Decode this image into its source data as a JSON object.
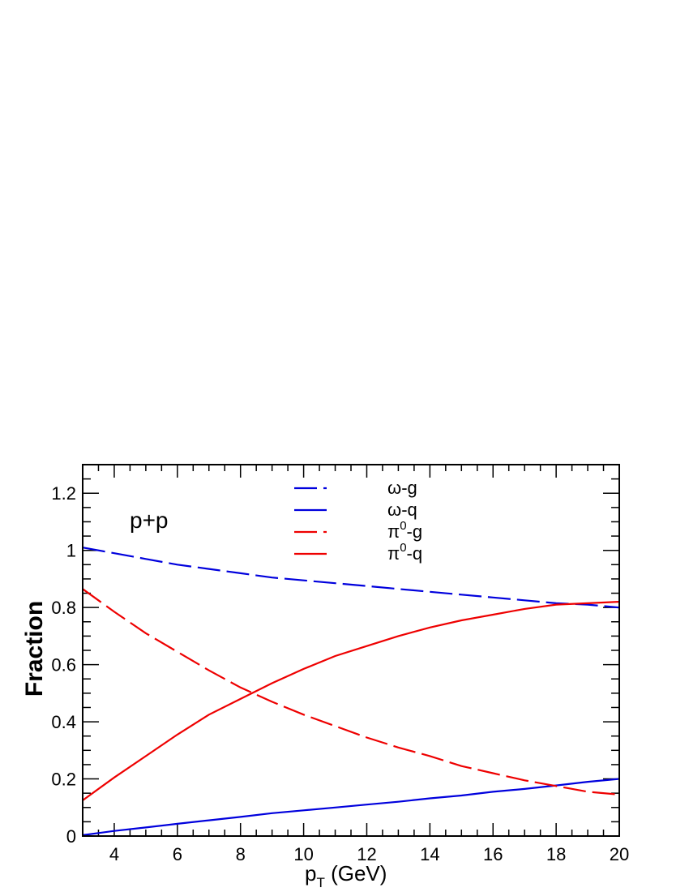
{
  "chart_data": {
    "type": "line",
    "annotation": "p+p",
    "xlabel": {
      "main": "p",
      "sub": "T",
      "unit": " (GeV)"
    },
    "ylabel": "Fraction",
    "xlim": [
      3,
      20
    ],
    "ylim": [
      0,
      1.3
    ],
    "x_ticks": [
      4,
      6,
      8,
      10,
      12,
      14,
      16,
      18,
      20
    ],
    "y_ticks": [
      0,
      0.2,
      0.4,
      0.6,
      0.8,
      1,
      1.2
    ],
    "grid": false,
    "legend_position": "top-center",
    "x": [
      3,
      4,
      5,
      6,
      7,
      8,
      9,
      10,
      11,
      12,
      13,
      14,
      15,
      16,
      17,
      18,
      19,
      20
    ],
    "series": [
      {
        "name": "ω-g",
        "base": "ω",
        "sup": "",
        "suffix": "-g",
        "color": "#0000dd",
        "dash": "long",
        "values": [
          1.01,
          0.99,
          0.97,
          0.95,
          0.935,
          0.92,
          0.905,
          0.895,
          0.885,
          0.875,
          0.865,
          0.855,
          0.845,
          0.835,
          0.825,
          0.815,
          0.81,
          0.8
        ]
      },
      {
        "name": "ω-q",
        "base": "ω",
        "sup": "",
        "suffix": "-q",
        "color": "#0000dd",
        "dash": "solid",
        "values": [
          0.003,
          0.018,
          0.03,
          0.043,
          0.055,
          0.067,
          0.08,
          0.09,
          0.1,
          0.11,
          0.12,
          0.132,
          0.142,
          0.155,
          0.165,
          0.177,
          0.19,
          0.2
        ]
      },
      {
        "name": "π0-g",
        "base": "π",
        "sup": "0",
        "suffix": "-g",
        "color": "#ee0000",
        "dash": "long",
        "values": [
          0.865,
          0.785,
          0.71,
          0.645,
          0.58,
          0.52,
          0.47,
          0.425,
          0.385,
          0.345,
          0.31,
          0.28,
          0.245,
          0.22,
          0.195,
          0.175,
          0.155,
          0.145
        ]
      },
      {
        "name": "π0-q",
        "base": "π",
        "sup": "0",
        "suffix": "-q",
        "color": "#ee0000",
        "dash": "solid",
        "values": [
          0.125,
          0.205,
          0.28,
          0.355,
          0.425,
          0.48,
          0.535,
          0.585,
          0.63,
          0.665,
          0.7,
          0.73,
          0.755,
          0.775,
          0.795,
          0.81,
          0.815,
          0.82
        ]
      }
    ]
  }
}
